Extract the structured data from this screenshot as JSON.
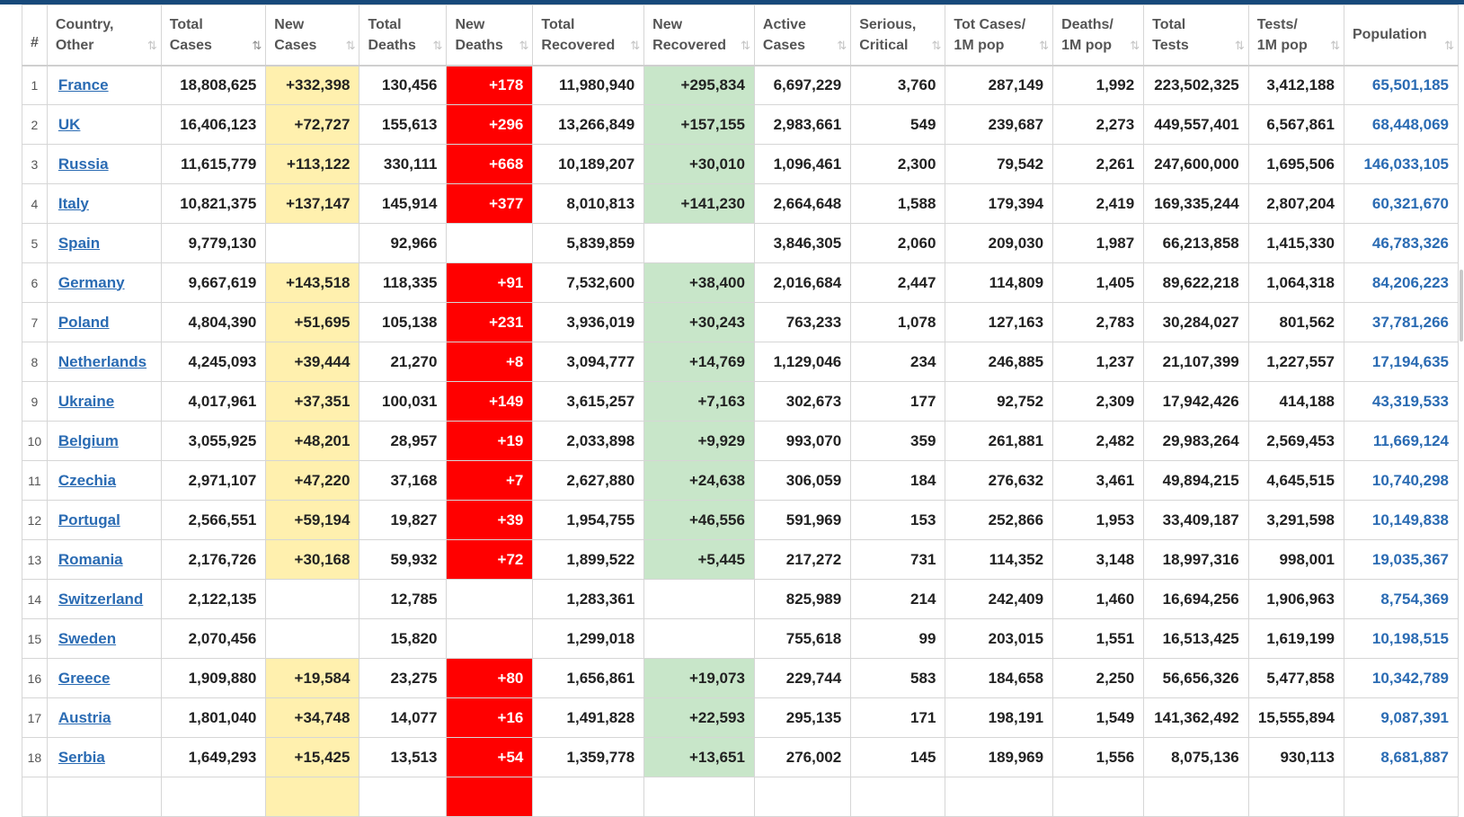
{
  "columns": [
    {
      "key": "rank",
      "label1": "#",
      "label2": ""
    },
    {
      "key": "country",
      "label1": "Country,",
      "label2": "Other"
    },
    {
      "key": "total_cases",
      "label1": "Total",
      "label2": "Cases"
    },
    {
      "key": "new_cases",
      "label1": "New",
      "label2": "Cases"
    },
    {
      "key": "total_deaths",
      "label1": "Total",
      "label2": "Deaths"
    },
    {
      "key": "new_deaths",
      "label1": "New",
      "label2": "Deaths"
    },
    {
      "key": "total_recovered",
      "label1": "Total",
      "label2": "Recovered"
    },
    {
      "key": "new_recovered",
      "label1": "New",
      "label2": "Recovered"
    },
    {
      "key": "active_cases",
      "label1": "Active",
      "label2": "Cases"
    },
    {
      "key": "serious",
      "label1": "Serious,",
      "label2": "Critical"
    },
    {
      "key": "cases_per_m",
      "label1": "Tot Cases/",
      "label2": "1M pop"
    },
    {
      "key": "deaths_per_m",
      "label1": "Deaths/",
      "label2": "1M pop"
    },
    {
      "key": "total_tests",
      "label1": "Total",
      "label2": "Tests"
    },
    {
      "key": "tests_per_m",
      "label1": "Tests/",
      "label2": "1M pop"
    },
    {
      "key": "population",
      "label1": "Population",
      "label2": ""
    }
  ],
  "sort_icon": "⇅",
  "active_sort_icon": "⇅",
  "rows": [
    {
      "rank": "1",
      "country": "France",
      "total_cases": "18,808,625",
      "new_cases": "+332,398",
      "total_deaths": "130,456",
      "new_deaths": "+178",
      "total_recovered": "11,980,940",
      "new_recovered": "+295,834",
      "active_cases": "6,697,229",
      "serious": "3,760",
      "cases_per_m": "287,149",
      "deaths_per_m": "1,992",
      "total_tests": "223,502,325",
      "tests_per_m": "3,412,188",
      "population": "65,501,185"
    },
    {
      "rank": "2",
      "country": "UK",
      "total_cases": "16,406,123",
      "new_cases": "+72,727",
      "total_deaths": "155,613",
      "new_deaths": "+296",
      "total_recovered": "13,266,849",
      "new_recovered": "+157,155",
      "active_cases": "2,983,661",
      "serious": "549",
      "cases_per_m": "239,687",
      "deaths_per_m": "2,273",
      "total_tests": "449,557,401",
      "tests_per_m": "6,567,861",
      "population": "68,448,069"
    },
    {
      "rank": "3",
      "country": "Russia",
      "total_cases": "11,615,779",
      "new_cases": "+113,122",
      "total_deaths": "330,111",
      "new_deaths": "+668",
      "total_recovered": "10,189,207",
      "new_recovered": "+30,010",
      "active_cases": "1,096,461",
      "serious": "2,300",
      "cases_per_m": "79,542",
      "deaths_per_m": "2,261",
      "total_tests": "247,600,000",
      "tests_per_m": "1,695,506",
      "population": "146,033,105"
    },
    {
      "rank": "4",
      "country": "Italy",
      "total_cases": "10,821,375",
      "new_cases": "+137,147",
      "total_deaths": "145,914",
      "new_deaths": "+377",
      "total_recovered": "8,010,813",
      "new_recovered": "+141,230",
      "active_cases": "2,664,648",
      "serious": "1,588",
      "cases_per_m": "179,394",
      "deaths_per_m": "2,419",
      "total_tests": "169,335,244",
      "tests_per_m": "2,807,204",
      "population": "60,321,670"
    },
    {
      "rank": "5",
      "country": "Spain",
      "total_cases": "9,779,130",
      "new_cases": "",
      "total_deaths": "92,966",
      "new_deaths": "",
      "total_recovered": "5,839,859",
      "new_recovered": "",
      "active_cases": "3,846,305",
      "serious": "2,060",
      "cases_per_m": "209,030",
      "deaths_per_m": "1,987",
      "total_tests": "66,213,858",
      "tests_per_m": "1,415,330",
      "population": "46,783,326"
    },
    {
      "rank": "6",
      "country": "Germany",
      "total_cases": "9,667,619",
      "new_cases": "+143,518",
      "total_deaths": "118,335",
      "new_deaths": "+91",
      "total_recovered": "7,532,600",
      "new_recovered": "+38,400",
      "active_cases": "2,016,684",
      "serious": "2,447",
      "cases_per_m": "114,809",
      "deaths_per_m": "1,405",
      "total_tests": "89,622,218",
      "tests_per_m": "1,064,318",
      "population": "84,206,223"
    },
    {
      "rank": "7",
      "country": "Poland",
      "total_cases": "4,804,390",
      "new_cases": "+51,695",
      "total_deaths": "105,138",
      "new_deaths": "+231",
      "total_recovered": "3,936,019",
      "new_recovered": "+30,243",
      "active_cases": "763,233",
      "serious": "1,078",
      "cases_per_m": "127,163",
      "deaths_per_m": "2,783",
      "total_tests": "30,284,027",
      "tests_per_m": "801,562",
      "population": "37,781,266"
    },
    {
      "rank": "8",
      "country": "Netherlands",
      "total_cases": "4,245,093",
      "new_cases": "+39,444",
      "total_deaths": "21,270",
      "new_deaths": "+8",
      "total_recovered": "3,094,777",
      "new_recovered": "+14,769",
      "active_cases": "1,129,046",
      "serious": "234",
      "cases_per_m": "246,885",
      "deaths_per_m": "1,237",
      "total_tests": "21,107,399",
      "tests_per_m": "1,227,557",
      "population": "17,194,635"
    },
    {
      "rank": "9",
      "country": "Ukraine",
      "total_cases": "4,017,961",
      "new_cases": "+37,351",
      "total_deaths": "100,031",
      "new_deaths": "+149",
      "total_recovered": "3,615,257",
      "new_recovered": "+7,163",
      "active_cases": "302,673",
      "serious": "177",
      "cases_per_m": "92,752",
      "deaths_per_m": "2,309",
      "total_tests": "17,942,426",
      "tests_per_m": "414,188",
      "population": "43,319,533"
    },
    {
      "rank": "10",
      "country": "Belgium",
      "total_cases": "3,055,925",
      "new_cases": "+48,201",
      "total_deaths": "28,957",
      "new_deaths": "+19",
      "total_recovered": "2,033,898",
      "new_recovered": "+9,929",
      "active_cases": "993,070",
      "serious": "359",
      "cases_per_m": "261,881",
      "deaths_per_m": "2,482",
      "total_tests": "29,983,264",
      "tests_per_m": "2,569,453",
      "population": "11,669,124"
    },
    {
      "rank": "11",
      "country": "Czechia",
      "total_cases": "2,971,107",
      "new_cases": "+47,220",
      "total_deaths": "37,168",
      "new_deaths": "+7",
      "total_recovered": "2,627,880",
      "new_recovered": "+24,638",
      "active_cases": "306,059",
      "serious": "184",
      "cases_per_m": "276,632",
      "deaths_per_m": "3,461",
      "total_tests": "49,894,215",
      "tests_per_m": "4,645,515",
      "population": "10,740,298"
    },
    {
      "rank": "12",
      "country": "Portugal",
      "total_cases": "2,566,551",
      "new_cases": "+59,194",
      "total_deaths": "19,827",
      "new_deaths": "+39",
      "total_recovered": "1,954,755",
      "new_recovered": "+46,556",
      "active_cases": "591,969",
      "serious": "153",
      "cases_per_m": "252,866",
      "deaths_per_m": "1,953",
      "total_tests": "33,409,187",
      "tests_per_m": "3,291,598",
      "population": "10,149,838"
    },
    {
      "rank": "13",
      "country": "Romania",
      "total_cases": "2,176,726",
      "new_cases": "+30,168",
      "total_deaths": "59,932",
      "new_deaths": "+72",
      "total_recovered": "1,899,522",
      "new_recovered": "+5,445",
      "active_cases": "217,272",
      "serious": "731",
      "cases_per_m": "114,352",
      "deaths_per_m": "3,148",
      "total_tests": "18,997,316",
      "tests_per_m": "998,001",
      "population": "19,035,367"
    },
    {
      "rank": "14",
      "country": "Switzerland",
      "total_cases": "2,122,135",
      "new_cases": "",
      "total_deaths": "12,785",
      "new_deaths": "",
      "total_recovered": "1,283,361",
      "new_recovered": "",
      "active_cases": "825,989",
      "serious": "214",
      "cases_per_m": "242,409",
      "deaths_per_m": "1,460",
      "total_tests": "16,694,256",
      "tests_per_m": "1,906,963",
      "population": "8,754,369"
    },
    {
      "rank": "15",
      "country": "Sweden",
      "total_cases": "2,070,456",
      "new_cases": "",
      "total_deaths": "15,820",
      "new_deaths": "",
      "total_recovered": "1,299,018",
      "new_recovered": "",
      "active_cases": "755,618",
      "serious": "99",
      "cases_per_m": "203,015",
      "deaths_per_m": "1,551",
      "total_tests": "16,513,425",
      "tests_per_m": "1,619,199",
      "population": "10,198,515"
    },
    {
      "rank": "16",
      "country": "Greece",
      "total_cases": "1,909,880",
      "new_cases": "+19,584",
      "total_deaths": "23,275",
      "new_deaths": "+80",
      "total_recovered": "1,656,861",
      "new_recovered": "+19,073",
      "active_cases": "229,744",
      "serious": "583",
      "cases_per_m": "184,658",
      "deaths_per_m": "2,250",
      "total_tests": "56,656,326",
      "tests_per_m": "5,477,858",
      "population": "10,342,789"
    },
    {
      "rank": "17",
      "country": "Austria",
      "total_cases": "1,801,040",
      "new_cases": "+34,748",
      "total_deaths": "14,077",
      "new_deaths": "+16",
      "total_recovered": "1,491,828",
      "new_recovered": "+22,593",
      "active_cases": "295,135",
      "serious": "171",
      "cases_per_m": "198,191",
      "deaths_per_m": "1,549",
      "total_tests": "141,362,492",
      "tests_per_m": "15,555,894",
      "population": "9,087,391"
    },
    {
      "rank": "18",
      "country": "Serbia",
      "total_cases": "1,649,293",
      "new_cases": "+15,425",
      "total_deaths": "13,513",
      "new_deaths": "+54",
      "total_recovered": "1,359,778",
      "new_recovered": "+13,651",
      "active_cases": "276,002",
      "serious": "145",
      "cases_per_m": "189,969",
      "deaths_per_m": "1,556",
      "total_tests": "8,075,136",
      "tests_per_m": "930,113",
      "population": "8,681,887"
    },
    {
      "rank": "",
      "country": "",
      "total_cases": "",
      "new_cases": "",
      "total_deaths": "",
      "new_deaths": "",
      "total_recovered": "",
      "new_recovered": "",
      "active_cases": "",
      "serious": "",
      "cases_per_m": "",
      "deaths_per_m": "",
      "total_tests": "",
      "tests_per_m": "",
      "population": "",
      "partial": true
    }
  ],
  "colors": {
    "header_bar": "#17497a",
    "new_cases_bg": "#fff0ae",
    "new_deaths_bg": "#ff0000",
    "new_recovered_bg": "#c8e6c9",
    "link": "#2a6bb3"
  }
}
